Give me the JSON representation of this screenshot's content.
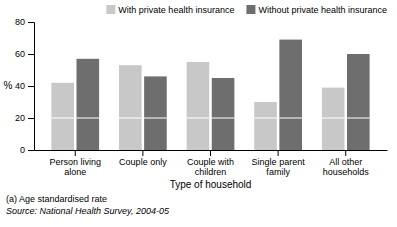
{
  "chart_data": {
    "type": "bar",
    "categories": [
      "Person living\nalone",
      "Couple only",
      "Couple with\nchildren",
      "Single parent\nfamily",
      "All other\nhouseholds"
    ],
    "series": [
      {
        "name": "With private health insurance",
        "color": "#c8c8c8",
        "values": [
          42,
          53,
          55,
          30,
          39
        ]
      },
      {
        "name": "Without private health insurance",
        "color": "#6e6e6e",
        "values": [
          57,
          46,
          45,
          69,
          60
        ]
      }
    ],
    "xlabel": "Type of household",
    "ylabel": "%",
    "ylim": [
      0,
      80
    ],
    "yticks": [
      0,
      20,
      40,
      60,
      80
    ],
    "divider_y": 20,
    "grid": false,
    "legend": "upper right",
    "notes": [
      "(a) Age standardised rate",
      "Source: National Health Survey, 2004-05"
    ]
  }
}
